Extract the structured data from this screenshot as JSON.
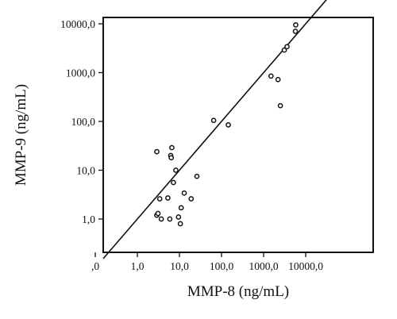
{
  "chart_data": {
    "type": "scatter",
    "title": "",
    "xlabel": "MMP-8 (ng/mL)",
    "ylabel": "MMP-9 (ng/mL)",
    "x_scale": "log",
    "y_scale": "log",
    "x_ticks": [
      {
        "value": 0.1,
        "label": ",0"
      },
      {
        "value": 1,
        "label": "1,0"
      },
      {
        "value": 10,
        "label": "10,0"
      },
      {
        "value": 100,
        "label": "100,0"
      },
      {
        "value": 1000,
        "label": "1000,0"
      },
      {
        "value": 10000,
        "label": "10000,0"
      }
    ],
    "y_ticks": [
      {
        "value": 0.1,
        "label": ",0"
      },
      {
        "value": 1,
        "label": "1,0"
      },
      {
        "value": 10,
        "label": "10,0"
      },
      {
        "value": 100,
        "label": "100,0"
      },
      {
        "value": 1000,
        "label": "1000,0"
      },
      {
        "value": 10000,
        "label": "10000,0"
      }
    ],
    "reference_line": "y = x",
    "grid": false,
    "points": [
      {
        "x": 2.9,
        "y": 24
      },
      {
        "x": 2.9,
        "y": 1.2
      },
      {
        "x": 3.1,
        "y": 1.3
      },
      {
        "x": 3.4,
        "y": 2.6
      },
      {
        "x": 3.7,
        "y": 1.0
      },
      {
        "x": 5.3,
        "y": 2.7
      },
      {
        "x": 5.9,
        "y": 1.0
      },
      {
        "x": 6.2,
        "y": 20
      },
      {
        "x": 6.4,
        "y": 18
      },
      {
        "x": 6.6,
        "y": 29
      },
      {
        "x": 7.2,
        "y": 5.6
      },
      {
        "x": 8.2,
        "y": 10
      },
      {
        "x": 9.5,
        "y": 1.1
      },
      {
        "x": 10.5,
        "y": 0.8
      },
      {
        "x": 11,
        "y": 1.7
      },
      {
        "x": 13,
        "y": 3.4
      },
      {
        "x": 19,
        "y": 2.6
      },
      {
        "x": 26,
        "y": 7.5
      },
      {
        "x": 65,
        "y": 105
      },
      {
        "x": 145,
        "y": 85
      },
      {
        "x": 1500,
        "y": 850
      },
      {
        "x": 2200,
        "y": 720
      },
      {
        "x": 2500,
        "y": 210
      },
      {
        "x": 3100,
        "y": 2900
      },
      {
        "x": 3600,
        "y": 3400
      },
      {
        "x": 5700,
        "y": 7000
      },
      {
        "x": 5800,
        "y": 9500
      }
    ]
  }
}
